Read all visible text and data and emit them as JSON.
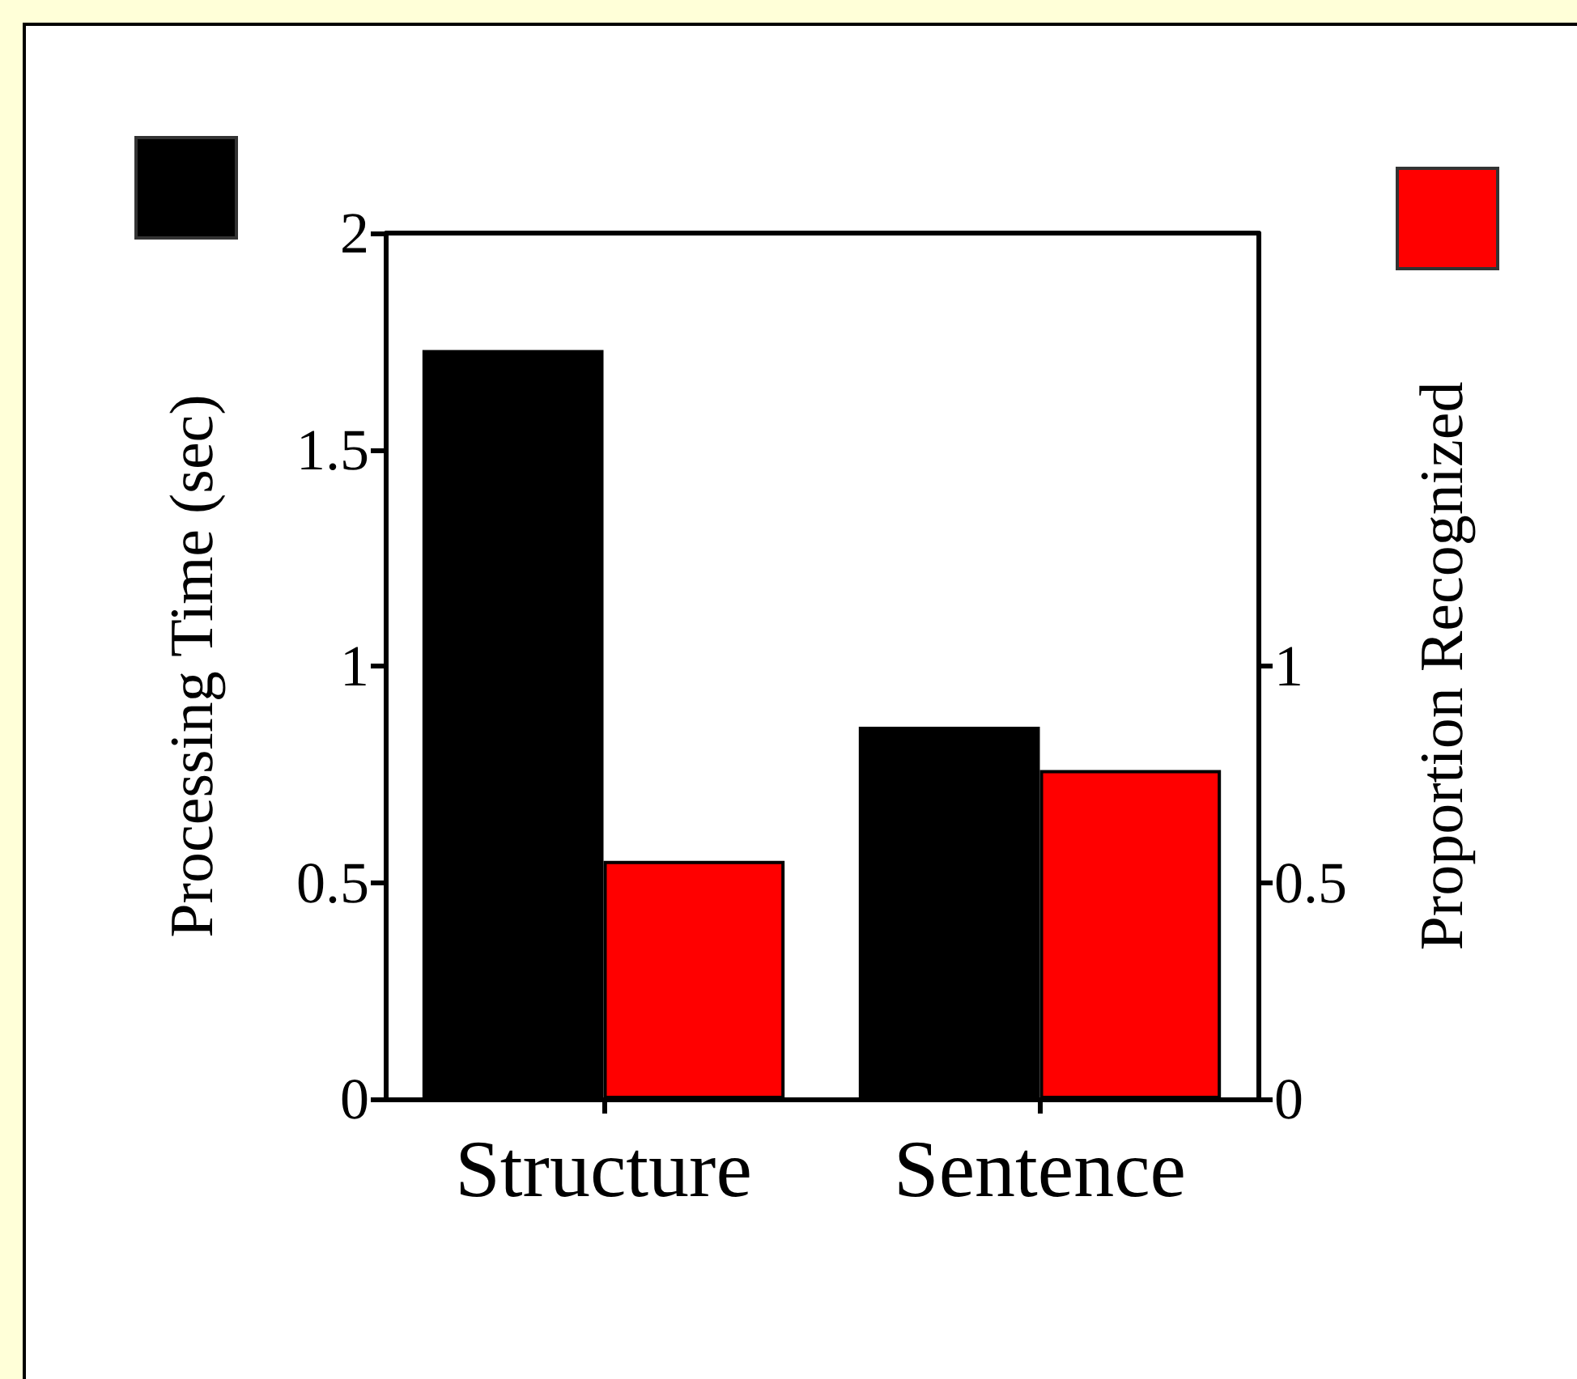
{
  "chart_data": {
    "type": "bar",
    "categories": [
      "Structure",
      "Sentence"
    ],
    "series": [
      {
        "color": "#000000",
        "values": [
          1.73,
          0.86
        ]
      },
      {
        "color": "#ff0000",
        "values": [
          0.55,
          0.76
        ],
        "axis": "y2"
      }
    ],
    "ylabel": "Processing Time (sec)",
    "y2label": "Proportion Recognized",
    "ylim": [
      0,
      2
    ],
    "yticks": [
      0,
      0.5,
      1,
      1.5,
      2
    ],
    "y2lim": [
      0,
      2
    ],
    "y2ticks": [
      0,
      0.5,
      1
    ],
    "grid": false
  }
}
